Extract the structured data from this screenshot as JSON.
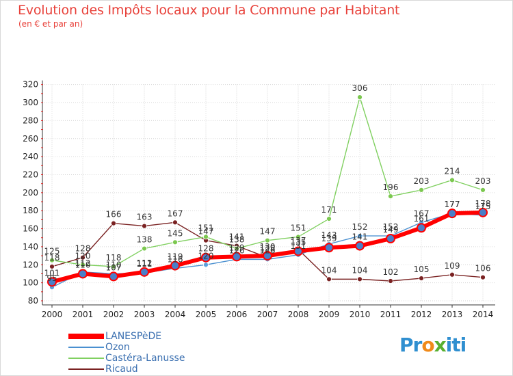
{
  "chart_data": {
    "type": "line",
    "title": "Evolution des Impôts locaux pour la Commune par Habitant",
    "subtitle": "(en € et par an)",
    "xlabel": "",
    "ylabel": "",
    "ylim": [
      80,
      320
    ],
    "yticks": [
      80,
      100,
      120,
      140,
      160,
      180,
      200,
      220,
      240,
      260,
      280,
      300,
      320
    ],
    "categories": [
      "2000",
      "2001",
      "2002",
      "2003",
      "2004",
      "2005",
      "2006",
      "2007",
      "2008",
      "2009",
      "2010",
      "2011",
      "2012",
      "2013",
      "2014"
    ],
    "series": [
      {
        "name": "LANESPèDE",
        "color": "#ff0000",
        "values": [
          101,
          110,
          107,
          112,
          119,
          128,
          129,
          130,
          135,
          139,
          141,
          149,
          161,
          177,
          178
        ]
      },
      {
        "name": "Ozon",
        "color": "#4a90d0",
        "values": [
          95,
          112,
          110,
          111,
          116,
          120,
          126,
          126,
          131,
          143,
          152,
          152,
          167,
          177,
          175
        ]
      },
      {
        "name": "Castéra-Lanusse",
        "color": "#80d060",
        "values": [
          125,
          120,
          118,
          138,
          145,
          151,
          138,
          147,
          151,
          171,
          306,
          196,
          203,
          214,
          203
        ]
      },
      {
        "name": "Ricaud",
        "color": "#7a2222",
        "values": [
          118,
          128,
          166,
          163,
          167,
          147,
          141,
          128,
          137,
          104,
          104,
          102,
          105,
          109,
          106
        ]
      }
    ]
  },
  "logo": {
    "part1": "Pr",
    "part2": "o",
    "part3": "x",
    "part4": "iti"
  }
}
